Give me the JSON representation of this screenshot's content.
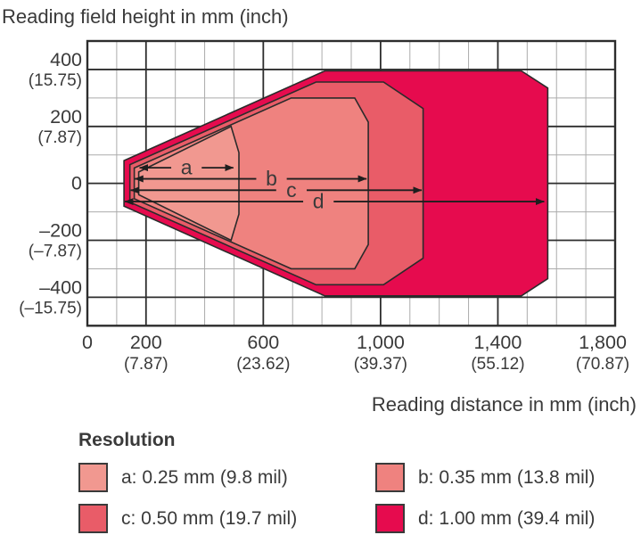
{
  "title": "Reading field height in mm (inch)",
  "colors": {
    "outline": "#2b2b2b",
    "grid_minor": "#ababab",
    "grid_major": "#2d2d2d",
    "frame": "#2d2d2d",
    "text": "#3a3a3a",
    "arrow": "#1e1e1e"
  },
  "legend": {
    "title": "Resolution",
    "items": [
      {
        "key": "a",
        "label": "a: 0.25 mm (9.8 mil)",
        "color": "#F19890"
      },
      {
        "key": "b",
        "label": "b: 0.35 mm (13.8 mil)",
        "color": "#EF827F"
      },
      {
        "key": "c",
        "label": "c: 0.50 mm (19.7 mil)",
        "color": "#E95C68"
      },
      {
        "key": "d",
        "label": "d: 1.00 mm (39.4 mil)",
        "color": "#E60B4E"
      }
    ]
  },
  "chart_data": {
    "type": "area",
    "title": "Reading field height in mm (inch)",
    "xlabel": "Reading distance in mm (inch)",
    "ylabel": "Reading field height in mm (inch)",
    "xlim": [
      0,
      1800
    ],
    "ylim": [
      -500,
      500
    ],
    "grid": "on",
    "grid_minor_step_mm": 100,
    "x_major_ticks": [
      {
        "mm": 0,
        "label": "0",
        "inch": ""
      },
      {
        "mm": 200,
        "label": "200",
        "inch": "(7.87)"
      },
      {
        "mm": 600,
        "label": "600",
        "inch": "(23.62)"
      },
      {
        "mm": 1000,
        "label": "1,000",
        "inch": "(39.37)"
      },
      {
        "mm": 1400,
        "label": "1,400",
        "inch": "(55.12)"
      },
      {
        "mm": 1800,
        "label": "1,800",
        "inch": "(70.87)"
      }
    ],
    "y_major_ticks": [
      {
        "mm": 400,
        "label": "400",
        "inch": "(15.75)"
      },
      {
        "mm": 200,
        "label": "200",
        "inch": "(7.87)"
      },
      {
        "mm": 0,
        "label": "0",
        "inch": ""
      },
      {
        "mm": -200,
        "label": "–200",
        "inch": "(–7.87)"
      },
      {
        "mm": -400,
        "label": "–400",
        "inch": "(–15.75)"
      }
    ],
    "series": [
      {
        "key": "d",
        "resolution": "1.00 mm (39.4 mil)",
        "color": "#E60B4E",
        "polygon": [
          [
            125,
            80
          ],
          [
            810,
            395
          ],
          [
            1480,
            395
          ],
          [
            1570,
            335
          ],
          [
            1570,
            -335
          ],
          [
            1480,
            -395
          ],
          [
            810,
            -395
          ],
          [
            125,
            -80
          ]
        ]
      },
      {
        "key": "c",
        "resolution": "0.50 mm (19.7 mil)",
        "color": "#E95C68",
        "polygon": [
          [
            145,
            66
          ],
          [
            780,
            356
          ],
          [
            1010,
            356
          ],
          [
            1145,
            263
          ],
          [
            1145,
            -263
          ],
          [
            1010,
            -356
          ],
          [
            780,
            -356
          ],
          [
            145,
            -66
          ]
        ]
      },
      {
        "key": "b",
        "resolution": "0.35 mm (13.8 mil)",
        "color": "#EF827F",
        "polygon": [
          [
            160,
            54
          ],
          [
            695,
            300
          ],
          [
            912,
            300
          ],
          [
            958,
            215
          ],
          [
            958,
            -215
          ],
          [
            912,
            -300
          ],
          [
            695,
            -300
          ],
          [
            160,
            -54
          ]
        ]
      },
      {
        "key": "a",
        "resolution": "0.25 mm (9.8 mil)",
        "color": "#F19890",
        "polygon": [
          [
            175,
            40
          ],
          [
            490,
            200
          ],
          [
            517,
            108
          ],
          [
            517,
            -108
          ],
          [
            490,
            -200
          ],
          [
            175,
            -40
          ]
        ]
      }
    ],
    "arrows": [
      {
        "label": "a",
        "y_mm": 55,
        "from_mm": 178,
        "to_mm": 498,
        "label_x_mm": 338
      },
      {
        "label": "b",
        "y_mm": 16,
        "from_mm": 162,
        "to_mm": 952,
        "label_x_mm": 628
      },
      {
        "label": "c",
        "y_mm": -24,
        "from_mm": 148,
        "to_mm": 1140,
        "label_x_mm": 696
      },
      {
        "label": "d",
        "y_mm": -64,
        "from_mm": 128,
        "to_mm": 1558,
        "label_x_mm": 788
      }
    ]
  }
}
